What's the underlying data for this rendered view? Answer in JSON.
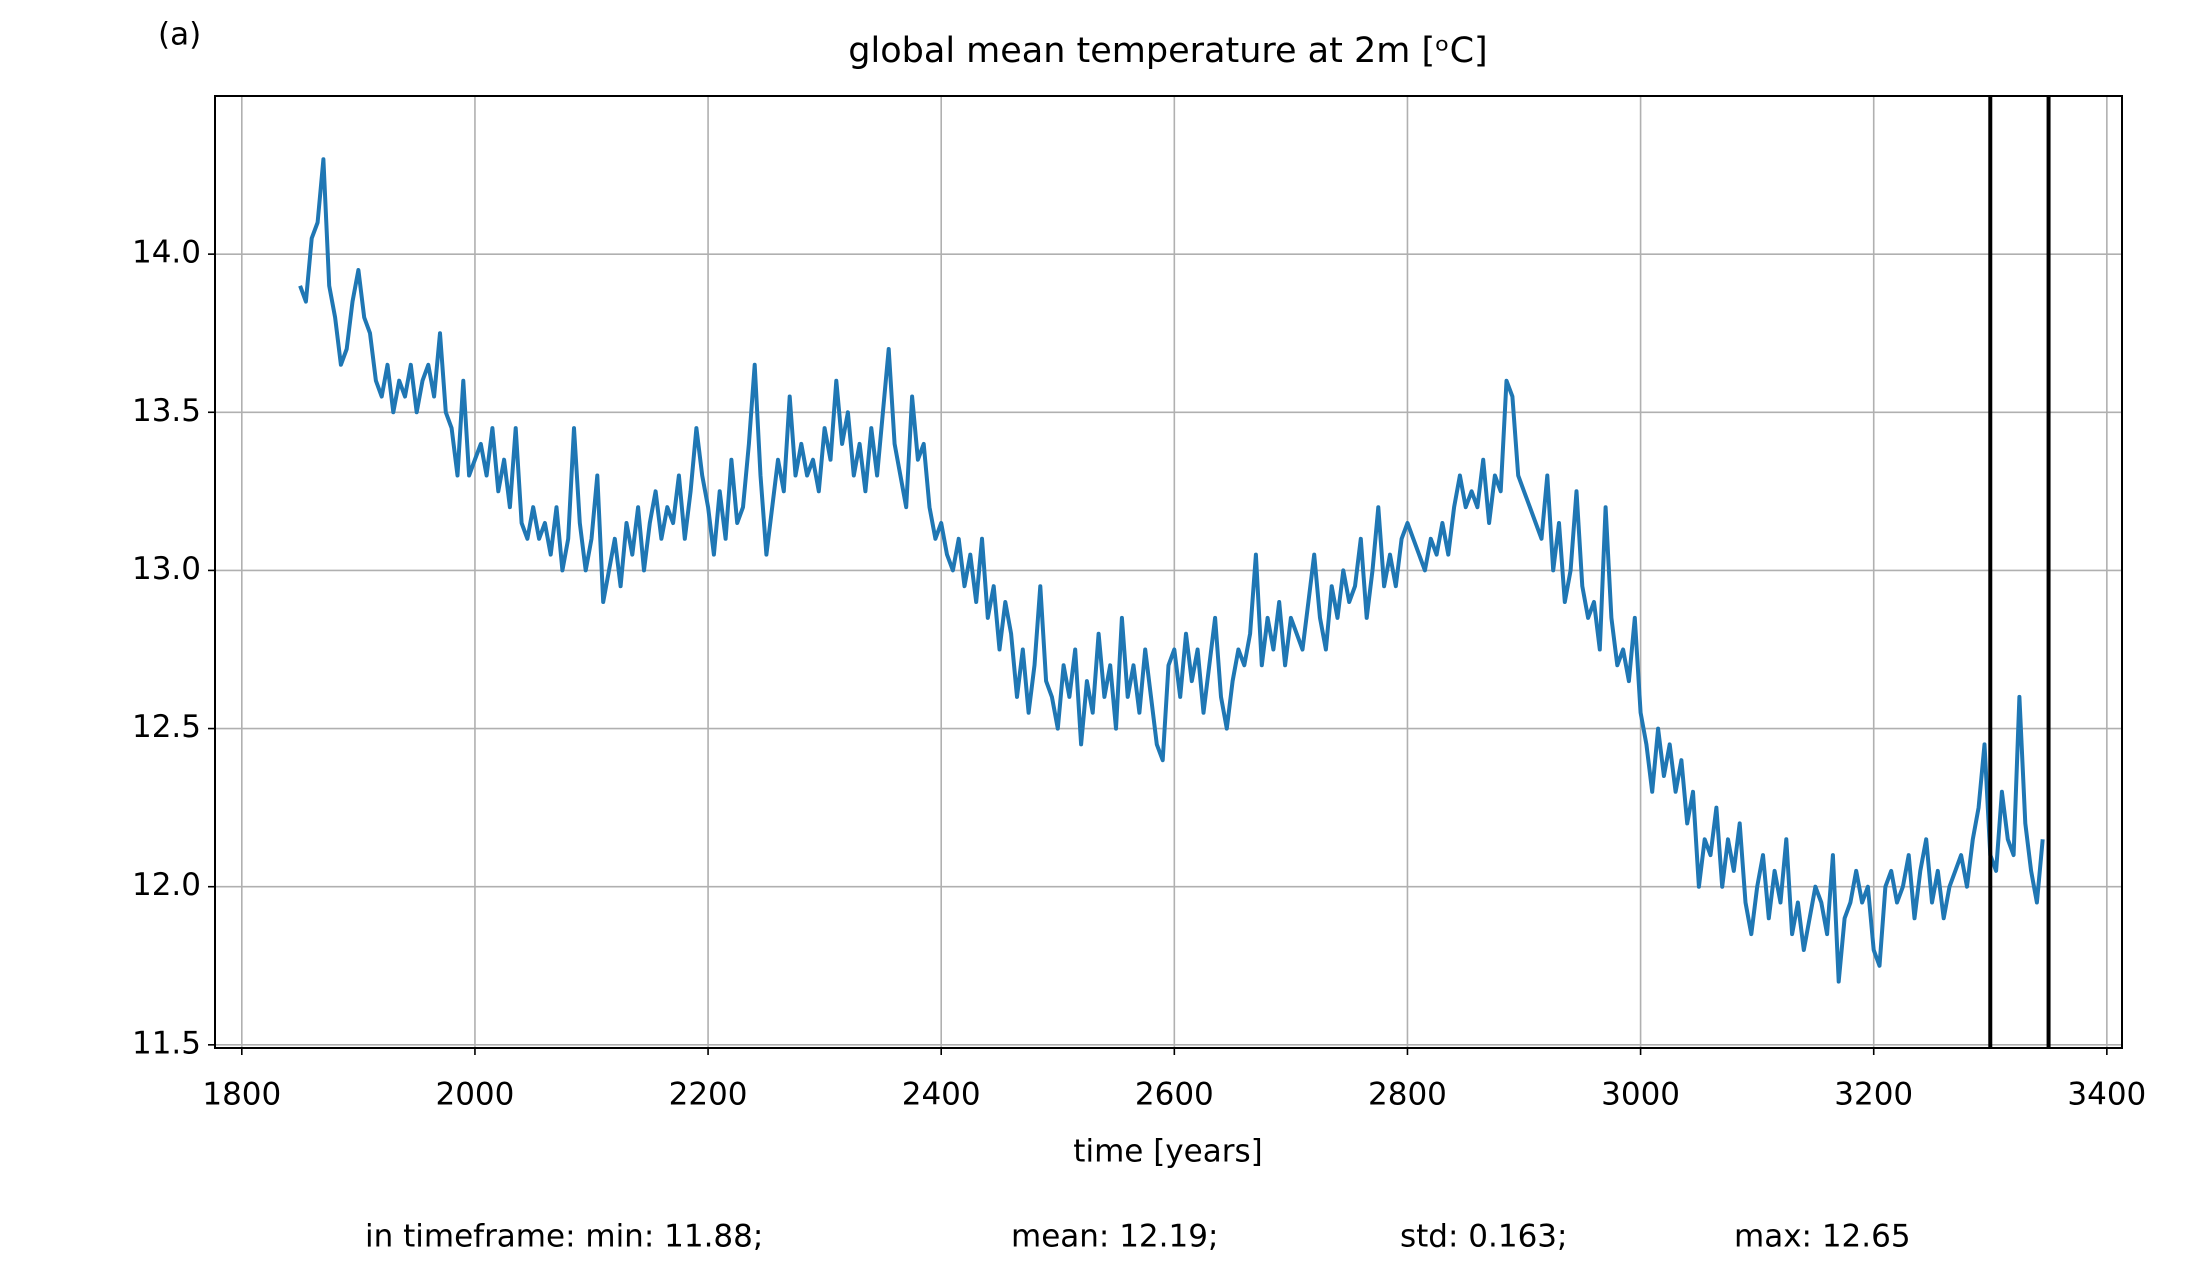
{
  "chart_data": {
    "type": "line",
    "panel_label": "(a)",
    "title": "global mean temperature at 2m [ᵒC]",
    "xlabel": "time [years]",
    "x": [
      1850,
      1855,
      1860,
      1865,
      1870,
      1875,
      1880,
      1885,
      1890,
      1895,
      1900,
      1905,
      1910,
      1915,
      1920,
      1925,
      1930,
      1935,
      1940,
      1945,
      1950,
      1955,
      1960,
      1965,
      1970,
      1975,
      1980,
      1985,
      1990,
      1995,
      2000,
      2005,
      2010,
      2015,
      2020,
      2025,
      2030,
      2035,
      2040,
      2045,
      2050,
      2055,
      2060,
      2065,
      2070,
      2075,
      2080,
      2085,
      2090,
      2095,
      2100,
      2105,
      2110,
      2115,
      2120,
      2125,
      2130,
      2135,
      2140,
      2145,
      2150,
      2155,
      2160,
      2165,
      2170,
      2175,
      2180,
      2185,
      2190,
      2195,
      2200,
      2205,
      2210,
      2215,
      2220,
      2225,
      2230,
      2235,
      2240,
      2245,
      2250,
      2255,
      2260,
      2265,
      2270,
      2275,
      2280,
      2285,
      2290,
      2295,
      2300,
      2305,
      2310,
      2315,
      2320,
      2325,
      2330,
      2335,
      2340,
      2345,
      2350,
      2355,
      2360,
      2365,
      2370,
      2375,
      2380,
      2385,
      2390,
      2395,
      2400,
      2405,
      2410,
      2415,
      2420,
      2425,
      2430,
      2435,
      2440,
      2445,
      2450,
      2455,
      2460,
      2465,
      2470,
      2475,
      2480,
      2485,
      2490,
      2495,
      2500,
      2505,
      2510,
      2515,
      2520,
      2525,
      2530,
      2535,
      2540,
      2545,
      2550,
      2555,
      2560,
      2565,
      2570,
      2575,
      2580,
      2585,
      2590,
      2595,
      2600,
      2605,
      2610,
      2615,
      2620,
      2625,
      2630,
      2635,
      2640,
      2645,
      2650,
      2655,
      2660,
      2665,
      2670,
      2675,
      2680,
      2685,
      2690,
      2695,
      2700,
      2705,
      2710,
      2715,
      2720,
      2725,
      2730,
      2735,
      2740,
      2745,
      2750,
      2755,
      2760,
      2765,
      2770,
      2775,
      2780,
      2785,
      2790,
      2795,
      2800,
      2805,
      2810,
      2815,
      2820,
      2825,
      2830,
      2835,
      2840,
      2845,
      2850,
      2855,
      2860,
      2865,
      2870,
      2875,
      2880,
      2885,
      2890,
      2895,
      2900,
      2905,
      2910,
      2915,
      2920,
      2925,
      2930,
      2935,
      2940,
      2945,
      2950,
      2955,
      2960,
      2965,
      2970,
      2975,
      2980,
      2985,
      2990,
      2995,
      3000,
      3005,
      3010,
      3015,
      3020,
      3025,
      3030,
      3035,
      3040,
      3045,
      3050,
      3055,
      3060,
      3065,
      3070,
      3075,
      3080,
      3085,
      3090,
      3095,
      3100,
      3105,
      3110,
      3115,
      3120,
      3125,
      3130,
      3135,
      3140,
      3145,
      3150,
      3155,
      3160,
      3165,
      3170,
      3175,
      3180,
      3185,
      3190,
      3195,
      3200,
      3205,
      3210,
      3215,
      3220,
      3225,
      3230,
      3235,
      3240,
      3245,
      3250,
      3255,
      3260,
      3265,
      3270,
      3275,
      3280,
      3285,
      3290,
      3295,
      3300,
      3305,
      3310,
      3315,
      3320,
      3325,
      3330,
      3335,
      3340,
      3345
    ],
    "series": [
      {
        "color": "#1f77b4",
        "values": [
          13.9,
          13.85,
          14.05,
          14.1,
          14.3,
          13.9,
          13.8,
          13.65,
          13.7,
          13.85,
          13.95,
          13.8,
          13.75,
          13.6,
          13.55,
          13.65,
          13.5,
          13.6,
          13.55,
          13.65,
          13.5,
          13.6,
          13.65,
          13.55,
          13.75,
          13.5,
          13.45,
          13.3,
          13.6,
          13.3,
          13.35,
          13.4,
          13.3,
          13.45,
          13.25,
          13.35,
          13.2,
          13.45,
          13.15,
          13.1,
          13.2,
          13.1,
          13.15,
          13.05,
          13.2,
          13.0,
          13.1,
          13.45,
          13.15,
          13.0,
          13.1,
          13.3,
          12.9,
          13.0,
          13.1,
          12.95,
          13.15,
          13.05,
          13.2,
          13.0,
          13.15,
          13.25,
          13.1,
          13.2,
          13.15,
          13.3,
          13.1,
          13.25,
          13.45,
          13.3,
          13.2,
          13.05,
          13.25,
          13.1,
          13.35,
          13.15,
          13.2,
          13.4,
          13.65,
          13.3,
          13.05,
          13.2,
          13.35,
          13.25,
          13.55,
          13.3,
          13.4,
          13.3,
          13.35,
          13.25,
          13.45,
          13.35,
          13.6,
          13.4,
          13.5,
          13.3,
          13.4,
          13.25,
          13.45,
          13.3,
          13.5,
          13.7,
          13.4,
          13.3,
          13.2,
          13.55,
          13.35,
          13.4,
          13.2,
          13.1,
          13.15,
          13.05,
          13.0,
          13.1,
          12.95,
          13.05,
          12.9,
          13.1,
          12.85,
          12.95,
          12.75,
          12.9,
          12.8,
          12.6,
          12.75,
          12.55,
          12.7,
          12.95,
          12.65,
          12.6,
          12.5,
          12.7,
          12.6,
          12.75,
          12.45,
          12.65,
          12.55,
          12.8,
          12.6,
          12.7,
          12.5,
          12.85,
          12.6,
          12.7,
          12.55,
          12.75,
          12.6,
          12.45,
          12.4,
          12.7,
          12.75,
          12.6,
          12.8,
          12.65,
          12.75,
          12.55,
          12.7,
          12.85,
          12.6,
          12.5,
          12.65,
          12.75,
          12.7,
          12.8,
          13.05,
          12.7,
          12.85,
          12.75,
          12.9,
          12.7,
          12.85,
          12.8,
          12.75,
          12.9,
          13.05,
          12.85,
          12.75,
          12.95,
          12.85,
          13.0,
          12.9,
          12.95,
          13.1,
          12.85,
          13.0,
          13.2,
          12.95,
          13.05,
          12.95,
          13.1,
          13.15,
          13.1,
          13.05,
          13.0,
          13.1,
          13.05,
          13.15,
          13.05,
          13.2,
          13.3,
          13.2,
          13.25,
          13.2,
          13.35,
          13.15,
          13.3,
          13.25,
          13.6,
          13.55,
          13.3,
          13.25,
          13.2,
          13.15,
          13.1,
          13.3,
          13.0,
          13.15,
          12.9,
          13.0,
          13.25,
          12.95,
          12.85,
          12.9,
          12.75,
          13.2,
          12.85,
          12.7,
          12.75,
          12.65,
          12.85,
          12.55,
          12.45,
          12.3,
          12.5,
          12.35,
          12.45,
          12.3,
          12.4,
          12.2,
          12.3,
          12.0,
          12.15,
          12.1,
          12.25,
          12.0,
          12.15,
          12.05,
          12.2,
          11.95,
          11.85,
          12.0,
          12.1,
          11.9,
          12.05,
          11.95,
          12.15,
          11.85,
          11.95,
          11.8,
          11.9,
          12.0,
          11.95,
          11.85,
          12.1,
          11.7,
          11.9,
          11.95,
          12.05,
          11.95,
          12.0,
          11.8,
          11.75,
          12.0,
          12.05,
          11.95,
          12.0,
          12.1,
          11.9,
          12.05,
          12.15,
          11.95,
          12.05,
          11.9,
          12.0,
          12.05,
          12.1,
          12.0,
          12.15,
          12.25,
          12.45,
          12.1,
          12.05,
          12.3,
          12.15,
          12.1,
          12.6,
          12.2,
          12.05,
          11.95,
          12.15
        ]
      }
    ],
    "vlines": [
      3300,
      3350
    ],
    "vline_color": "#000000",
    "xlim": [
      1777,
      3413
    ],
    "ylim": [
      11.49,
      14.5
    ],
    "xticks": [
      1800,
      2000,
      2200,
      2400,
      2600,
      2800,
      3000,
      3200,
      3400
    ],
    "yticks": [
      11.5,
      {
        "value": 12,
        "label": "12.0"
      },
      12.5,
      {
        "value": 13,
        "label": "13.0"
      },
      13.5,
      {
        "value": 14,
        "label": "14.0"
      }
    ],
    "grid": true,
    "stats": [
      "in timeframe: min: 11.88;",
      "mean: 12.19;",
      "std: 0.163;",
      "max: 12.65"
    ]
  }
}
